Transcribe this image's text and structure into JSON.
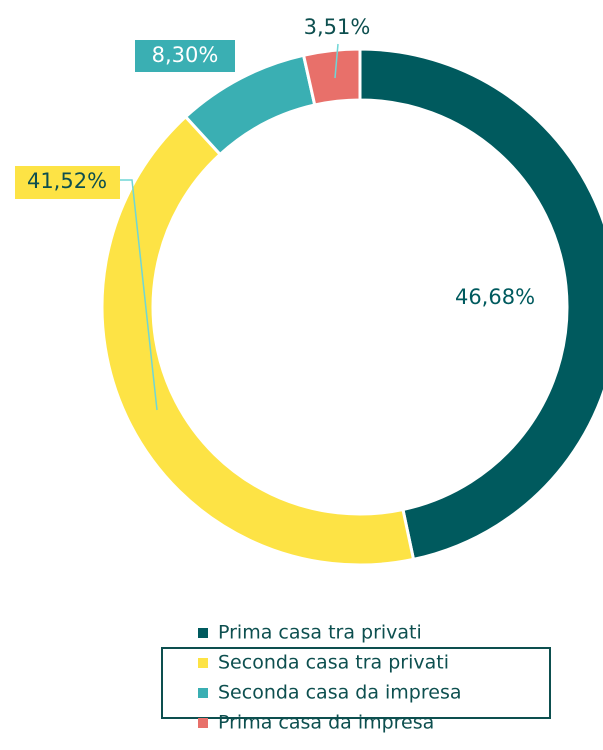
{
  "chart_data": {
    "type": "donut",
    "categories": [
      "Prima casa tra privati",
      "Seconda casa tra privati",
      "Seconda casa da impresa",
      "Prima casa da impresa"
    ],
    "values": [
      46.68,
      41.52,
      8.3,
      3.51
    ],
    "value_labels": [
      "46,68%",
      "41,52%",
      "8,30%",
      "3,51%"
    ],
    "colors": [
      "#005a5e",
      "#fde345",
      "#3aafb3",
      "#e8706a"
    ]
  }
}
